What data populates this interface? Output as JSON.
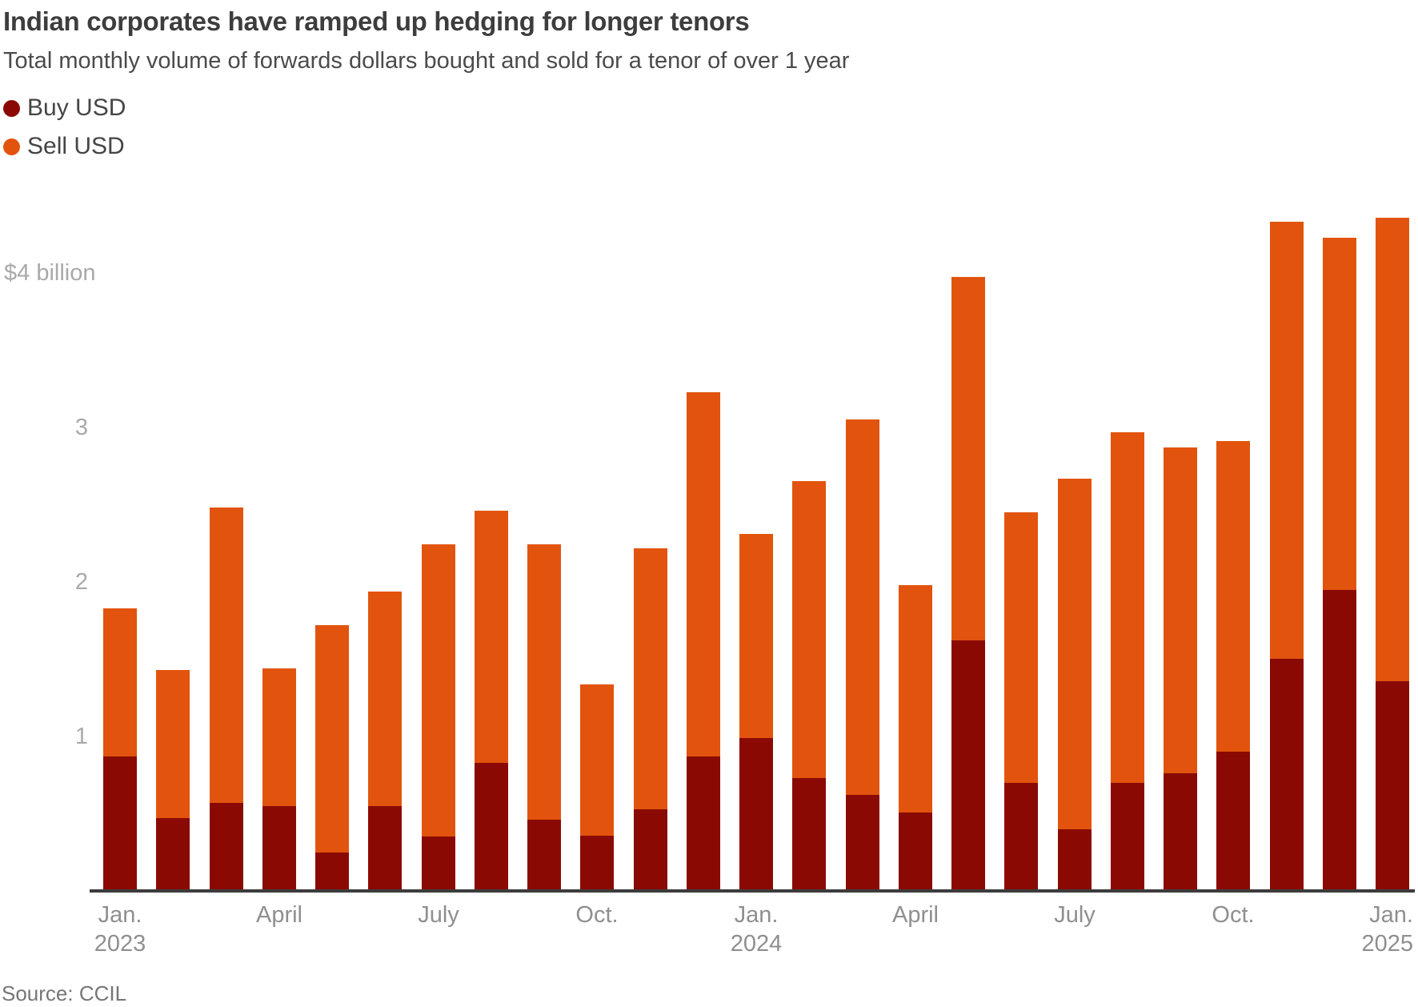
{
  "header": {
    "title": "Indian corporates have ramped up hedging for longer tenors",
    "subtitle": "Total monthly volume of forwards dollars bought and sold for a tenor of over 1 year"
  },
  "legend": {
    "items": [
      {
        "label": "Buy USD",
        "color": "#8a0a03"
      },
      {
        "label": "Sell USD",
        "color": "#e2540e"
      }
    ]
  },
  "source": "Source: CCIL",
  "colors": {
    "buy": "#8a0a03",
    "sell": "#e2540e",
    "axis_line": "#3c3c3c",
    "y_tick_text": "#a9a9a9",
    "x_tick_text": "#8f8f8f"
  },
  "chart_data": {
    "type": "bar",
    "stacked": true,
    "title": "Indian corporates have ramped up hedging for longer tenors",
    "subtitle": "Total monthly volume of forwards dollars bought and sold for a tenor of over 1 year",
    "unit": "USD billions",
    "categories": [
      "Jan. 2023",
      "Feb. 2023",
      "March 2023",
      "April 2023",
      "May 2023",
      "June 2023",
      "July 2023",
      "Aug. 2023",
      "Sept. 2023",
      "Oct. 2023",
      "Nov. 2023",
      "Dec. 2023",
      "Jan. 2024",
      "Feb. 2024",
      "March 2024",
      "April 2024",
      "May 2024",
      "June 2024",
      "July 2024",
      "Aug. 2024",
      "Sept. 2024",
      "Oct. 2024",
      "Nov. 2024",
      "Dec. 2024",
      "Jan. 2025"
    ],
    "series": [
      {
        "name": "Buy USD",
        "color": "#8a0a03",
        "values": [
          0.87,
          0.47,
          0.57,
          0.55,
          0.25,
          0.55,
          0.35,
          0.83,
          0.46,
          0.36,
          0.53,
          0.87,
          0.99,
          0.73,
          0.62,
          0.51,
          1.62,
          0.7,
          0.4,
          0.7,
          0.76,
          0.9,
          1.5,
          1.95,
          1.36
        ]
      },
      {
        "name": "Sell USD",
        "color": "#e2540e",
        "values": [
          0.96,
          0.96,
          1.91,
          0.89,
          1.47,
          1.39,
          1.89,
          1.63,
          1.78,
          0.98,
          1.69,
          2.36,
          1.32,
          1.92,
          2.43,
          1.47,
          2.35,
          1.75,
          2.27,
          2.27,
          2.11,
          2.01,
          2.83,
          2.28,
          3.0
        ]
      }
    ],
    "totals": [
      1.83,
      1.43,
      2.48,
      1.44,
      1.72,
      1.94,
      2.24,
      2.46,
      2.24,
      1.34,
      2.22,
      3.23,
      2.31,
      2.65,
      3.05,
      1.98,
      3.97,
      2.45,
      2.67,
      2.97,
      2.87,
      2.91,
      4.33,
      4.23,
      4.36
    ],
    "y_axis": {
      "top_label": "$4 billion",
      "tick_labels": [
        "1",
        "2",
        "3"
      ],
      "ylim": [
        0,
        4.52
      ],
      "gridlines": false
    },
    "x_ticks": [
      {
        "index": 0,
        "line1": "Jan.",
        "line2": "2023",
        "align": "center"
      },
      {
        "index": 3,
        "line1": "April",
        "line2": "",
        "align": "center"
      },
      {
        "index": 6,
        "line1": "July",
        "line2": "",
        "align": "center"
      },
      {
        "index": 9,
        "line1": "Oct.",
        "line2": "",
        "align": "center"
      },
      {
        "index": 12,
        "line1": "Jan.",
        "line2": "2024",
        "align": "center"
      },
      {
        "index": 15,
        "line1": "April",
        "line2": "",
        "align": "center"
      },
      {
        "index": 18,
        "line1": "July",
        "line2": "",
        "align": "center"
      },
      {
        "index": 21,
        "line1": "Oct.",
        "line2": "",
        "align": "center"
      },
      {
        "index": 24,
        "line1": "Jan.",
        "line2": "2025",
        "align": "right"
      }
    ],
    "legend_position": "top-left"
  }
}
